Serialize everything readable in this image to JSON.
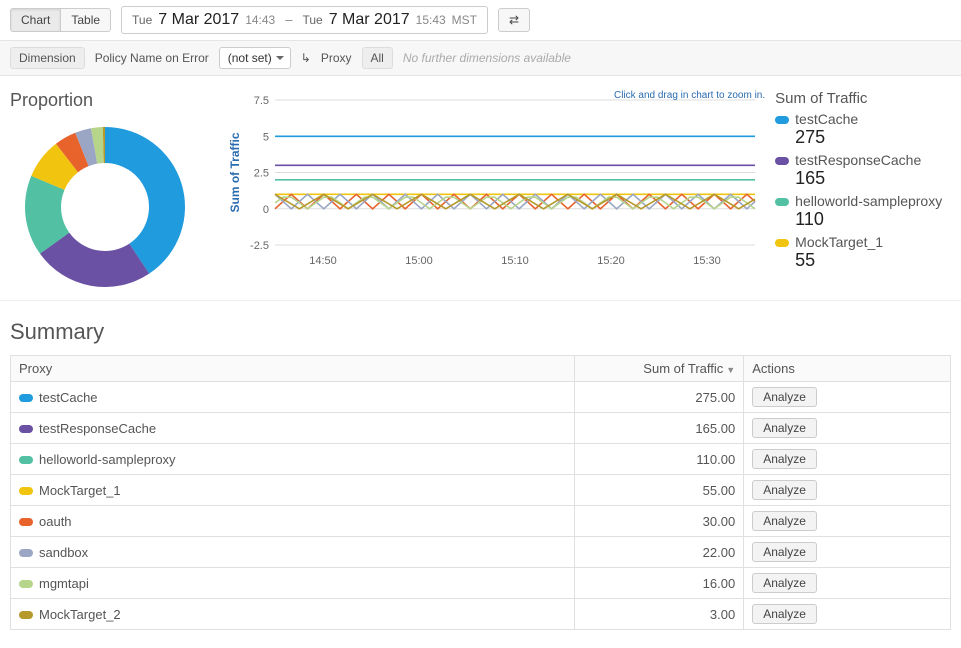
{
  "toolbar": {
    "tabs": {
      "chart": "Chart",
      "table": "Table",
      "active": "chart"
    },
    "dateRange": {
      "from": {
        "dow": "Tue",
        "date": "7 Mar 2017",
        "time": "14:43"
      },
      "to": {
        "dow": "Tue",
        "date": "7 Mar 2017",
        "time": "15:43",
        "tz": "MST"
      }
    },
    "refreshIcon": "⇄"
  },
  "filters": {
    "dimension_chip": "Dimension",
    "policy_label": "Policy Name on Error",
    "policy_value": "(not set)",
    "level_icon": "↳",
    "level_label": "Proxy",
    "scope_label": "All",
    "hint": "No further dimensions available"
  },
  "proportion": {
    "title": "Proportion",
    "type": "donut",
    "inner_radius_ratio": 0.55,
    "background_color": "#ffffff",
    "slices": [
      {
        "name": "testCache",
        "value": 275,
        "color": "#1f9bde"
      },
      {
        "name": "testResponseCache",
        "value": 165,
        "color": "#6a51a3"
      },
      {
        "name": "helloworld-sampleproxy",
        "value": 110,
        "color": "#52c0a3"
      },
      {
        "name": "MockTarget_1",
        "value": 55,
        "color": "#f1c40f"
      },
      {
        "name": "oauth",
        "value": 30,
        "color": "#e8622c"
      },
      {
        "name": "sandbox",
        "value": 22,
        "color": "#9aa6c4"
      },
      {
        "name": "mgmtapi",
        "value": 16,
        "color": "#b6d48a"
      },
      {
        "name": "MockTarget_2",
        "value": 3,
        "color": "#b59a2b"
      }
    ]
  },
  "lineChart": {
    "zoom_hint": "Click and drag in chart to zoom in.",
    "y_title": "Sum of Traffic",
    "ylim": [
      -2.5,
      7.5
    ],
    "yticks": [
      -2.5,
      0,
      2.5,
      5,
      7.5
    ],
    "xticks": [
      "14:50",
      "15:00",
      "15:10",
      "15:20",
      "15:30"
    ],
    "grid_color": "#dddddd",
    "axis_font_size": 11,
    "background_color": "#ffffff",
    "t_count": 60,
    "series": [
      {
        "name": "testCache",
        "color": "#1f9bde",
        "style": "flat",
        "level": 5.0
      },
      {
        "name": "testResponseCache",
        "color": "#6a51a3",
        "style": "flat",
        "level": 3.0
      },
      {
        "name": "helloworld-sampleproxy",
        "color": "#52c0a3",
        "style": "flat",
        "level": 2.0
      },
      {
        "name": "MockTarget_1",
        "color": "#f1c40f",
        "style": "flat",
        "level": 1.0
      },
      {
        "name": "oauth",
        "color": "#e8622c",
        "style": "zigzag",
        "low": 0.0,
        "high": 1.0,
        "period": 4,
        "phase": 0
      },
      {
        "name": "sandbox",
        "color": "#9aa6c4",
        "style": "zigzag",
        "low": 0.0,
        "high": 1.0,
        "period": 4,
        "phase": 2
      },
      {
        "name": "mgmtapi",
        "color": "#b6d48a",
        "style": "zigzag",
        "low": 0.0,
        "high": 1.0,
        "period": 5,
        "phase": 1
      },
      {
        "name": "MockTarget_2",
        "color": "#b59a2b",
        "style": "zigzag",
        "low": 0.0,
        "high": 1.0,
        "period": 6,
        "phase": 3
      }
    ]
  },
  "legend": {
    "title": "Sum of Traffic",
    "items": [
      {
        "name": "testCache",
        "value": 275,
        "color": "#1f9bde"
      },
      {
        "name": "testResponseCache",
        "value": 165,
        "color": "#6a51a3"
      },
      {
        "name": "helloworld-sampleproxy",
        "value": 110,
        "color": "#52c0a3"
      },
      {
        "name": "MockTarget_1",
        "value": 55,
        "color": "#f1c40f"
      }
    ]
  },
  "summary": {
    "title": "Summary",
    "columns": {
      "proxy": "Proxy",
      "sum": "Sum of Traffic",
      "actions": "Actions"
    },
    "action_label": "Analyze",
    "rows": [
      {
        "name": "testCache",
        "value": "275.00",
        "color": "#1f9bde"
      },
      {
        "name": "testResponseCache",
        "value": "165.00",
        "color": "#6a51a3"
      },
      {
        "name": "helloworld-sampleproxy",
        "value": "110.00",
        "color": "#52c0a3"
      },
      {
        "name": "MockTarget_1",
        "value": "55.00",
        "color": "#f1c40f"
      },
      {
        "name": "oauth",
        "value": "30.00",
        "color": "#e8622c"
      },
      {
        "name": "sandbox",
        "value": "22.00",
        "color": "#9aa6c4"
      },
      {
        "name": "mgmtapi",
        "value": "16.00",
        "color": "#b6d48a"
      },
      {
        "name": "MockTarget_2",
        "value": "3.00",
        "color": "#b59a2b"
      }
    ]
  }
}
